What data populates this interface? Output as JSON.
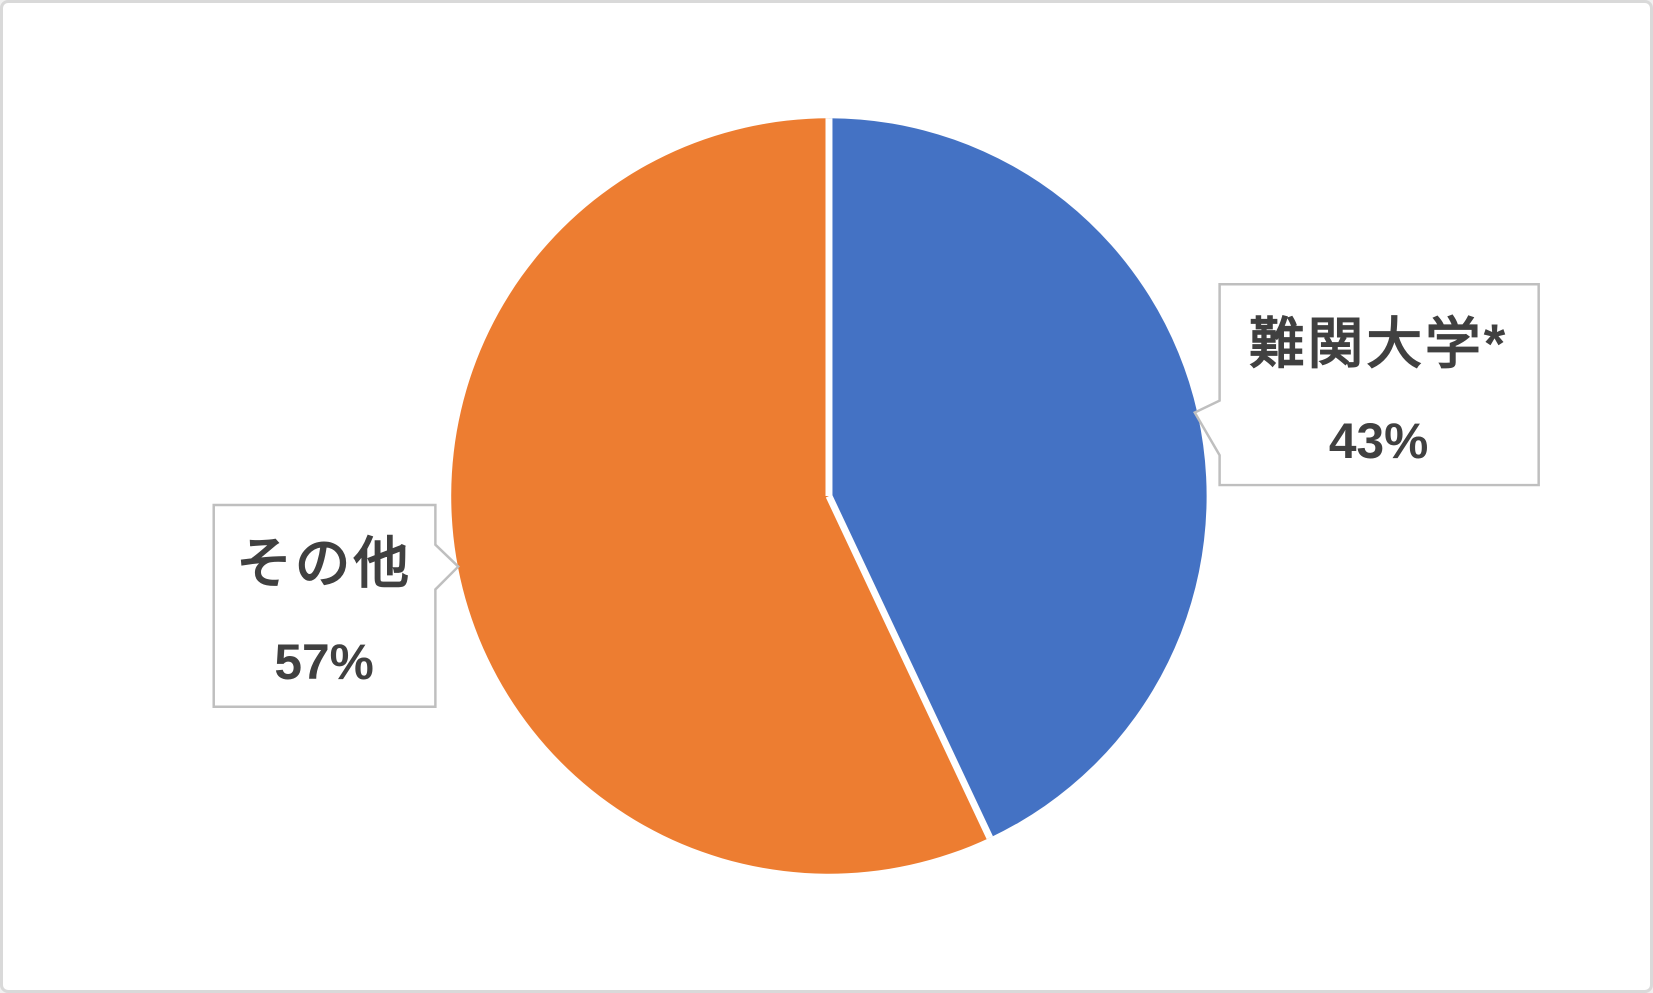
{
  "chart_data": {
    "type": "pie",
    "title": "",
    "slices": [
      {
        "label": "難関大学*",
        "value": 43,
        "percent_label": "43%",
        "color": "#4472C4"
      },
      {
        "label": "その他",
        "value": 57,
        "percent_label": "57%",
        "color": "#ED7D31"
      }
    ],
    "start_angle_deg": 0,
    "direction": "clockwise",
    "legend": "none",
    "data_label_style": "callout-with-category-name-and-percentage"
  },
  "colors": {
    "background": "#FFFFFF",
    "frame_border": "#D9D9D9",
    "callout_border": "#BFBFBF",
    "callout_fill": "#FFFFFF",
    "label_text": "#404040",
    "slice_separator": "#FFFFFF"
  }
}
